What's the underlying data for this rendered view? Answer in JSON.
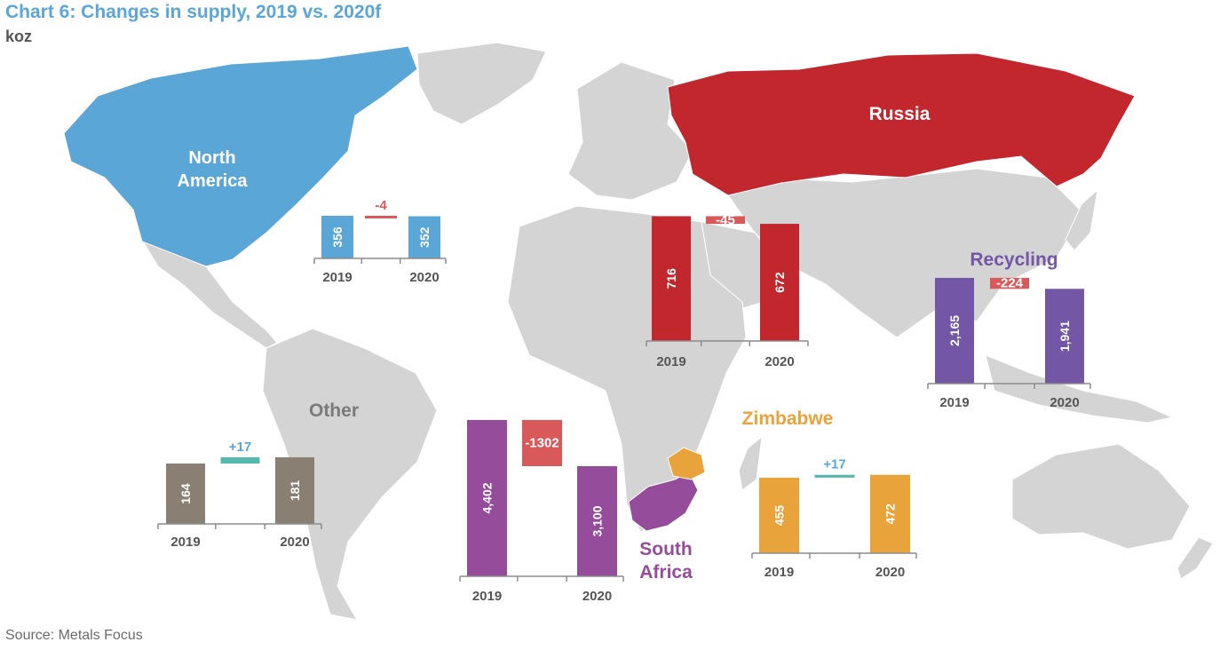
{
  "title": "Chart 6: Changes in supply, 2019 vs. 2020f",
  "subtitle": "koz",
  "source": "Source: Metals Focus",
  "colors": {
    "land": "#d4d4d4",
    "axis": "#8c8c8c",
    "year_label": "#555555",
    "change_negative": "#d9585a",
    "change_positive": "#59b8ad",
    "change_positive_label": "#5aa6d6"
  },
  "chart_data": [
    {
      "type": "bar",
      "region": "North America",
      "region_label_lines": [
        "North",
        "America"
      ],
      "region_color": "#5aa6d6",
      "categories": [
        "2019",
        "2020"
      ],
      "values": [
        356,
        352
      ],
      "value_labels": [
        "356",
        "352"
      ],
      "change": -4,
      "change_label": "-4",
      "change_label_style": "above"
    },
    {
      "type": "bar",
      "region": "Russia",
      "region_label_lines": [
        "Russia"
      ],
      "region_color": "#c1272d",
      "categories": [
        "2019",
        "2020"
      ],
      "values": [
        716,
        672
      ],
      "value_labels": [
        "716",
        "672"
      ],
      "change": -45,
      "change_label": "-45",
      "change_label_style": "inside"
    },
    {
      "type": "bar",
      "region": "Recycling",
      "region_label_lines": [
        "Recycling"
      ],
      "region_color": "#7356a6",
      "categories": [
        "2019",
        "2020"
      ],
      "values": [
        2165,
        1941
      ],
      "value_labels": [
        "2,165",
        "1,941"
      ],
      "change": -224,
      "change_label": "-224",
      "change_label_style": "inside"
    },
    {
      "type": "bar",
      "region": "Other",
      "region_label_lines": [
        "Other"
      ],
      "region_color": "#8a7f73",
      "categories": [
        "2019",
        "2020"
      ],
      "values": [
        164,
        181
      ],
      "value_labels": [
        "164",
        "181"
      ],
      "change": 17,
      "change_label": "+17",
      "change_label_style": "above"
    },
    {
      "type": "bar",
      "region": "South Africa",
      "region_label_lines": [
        "South",
        "Africa"
      ],
      "region_color": "#954c9a",
      "categories": [
        "2019",
        "2020"
      ],
      "values": [
        4402,
        3100
      ],
      "value_labels": [
        "4,402",
        "3,100"
      ],
      "change": -1302,
      "change_label": "-1302",
      "change_label_style": "inside"
    },
    {
      "type": "bar",
      "region": "Zimbabwe",
      "region_label_lines": [
        "Zimbabwe"
      ],
      "region_color": "#e8a33a",
      "categories": [
        "2019",
        "2020"
      ],
      "values": [
        455,
        472
      ],
      "value_labels": [
        "455",
        "472"
      ],
      "change": 17,
      "change_label": "+17",
      "change_label_style": "above"
    }
  ]
}
